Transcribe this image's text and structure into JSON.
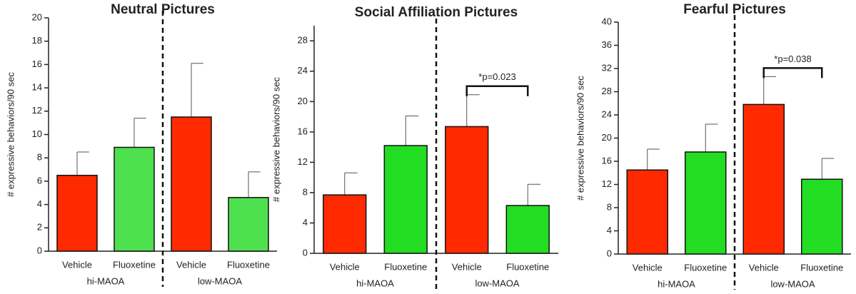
{
  "chart_data": [
    {
      "type": "bar",
      "title": "Neutral Pictures",
      "y_label": "# expressive behaviors/90 sec",
      "categories": [
        "Vehicle",
        "Fluoxetine",
        "Vehicle",
        "Fluoxetine"
      ],
      "groups": [
        "hi-MAOA",
        "low-MAOA"
      ],
      "values": [
        6.5,
        8.9,
        11.5,
        4.6
      ],
      "errors": [
        2.0,
        2.5,
        4.6,
        2.2
      ],
      "colors": [
        "#ff2a00",
        "#4ee04e",
        "#ff2a00",
        "#4ee04e"
      ],
      "ylim": [
        0,
        20
      ],
      "yticks": [
        0,
        2,
        4,
        6,
        8,
        10,
        12,
        14,
        16,
        18,
        20
      ]
    },
    {
      "type": "bar",
      "title": "Social Affiliation Pictures",
      "y_label": "# expressive behaviors/90 sec",
      "categories": [
        "Vehicle",
        "Fluoxetine",
        "Vehicle",
        "Fluoxetine"
      ],
      "groups": [
        "hi-MAOA",
        "low-MAOA"
      ],
      "values": [
        7.7,
        14.2,
        16.7,
        6.3
      ],
      "errors": [
        2.9,
        3.9,
        4.2,
        2.8
      ],
      "colors": [
        "#ff2a00",
        "#22dd22",
        "#ff2a00",
        "#22dd22"
      ],
      "ylim": [
        0,
        30
      ],
      "yticks": [
        0,
        4,
        8,
        12,
        16,
        20,
        24,
        28
      ],
      "annotation": "*p=0.023"
    },
    {
      "type": "bar",
      "title": "Fearful Pictures",
      "y_label": "# expressive behaviors/90 sec",
      "categories": [
        "Vehicle",
        "Fluoxetine",
        "Vehicle",
        "Fluoxetine"
      ],
      "groups": [
        "hi-MAOA",
        "low-MAOA"
      ],
      "values": [
        14.5,
        17.6,
        25.8,
        12.9
      ],
      "errors": [
        3.6,
        4.8,
        4.8,
        3.6
      ],
      "colors": [
        "#ff2a00",
        "#22dd22",
        "#ff2a00",
        "#22dd22"
      ],
      "ylim": [
        0,
        40
      ],
      "yticks": [
        0,
        4,
        8,
        12,
        16,
        20,
        24,
        28,
        32,
        36,
        40
      ],
      "annotation": "*p=0.038"
    }
  ]
}
